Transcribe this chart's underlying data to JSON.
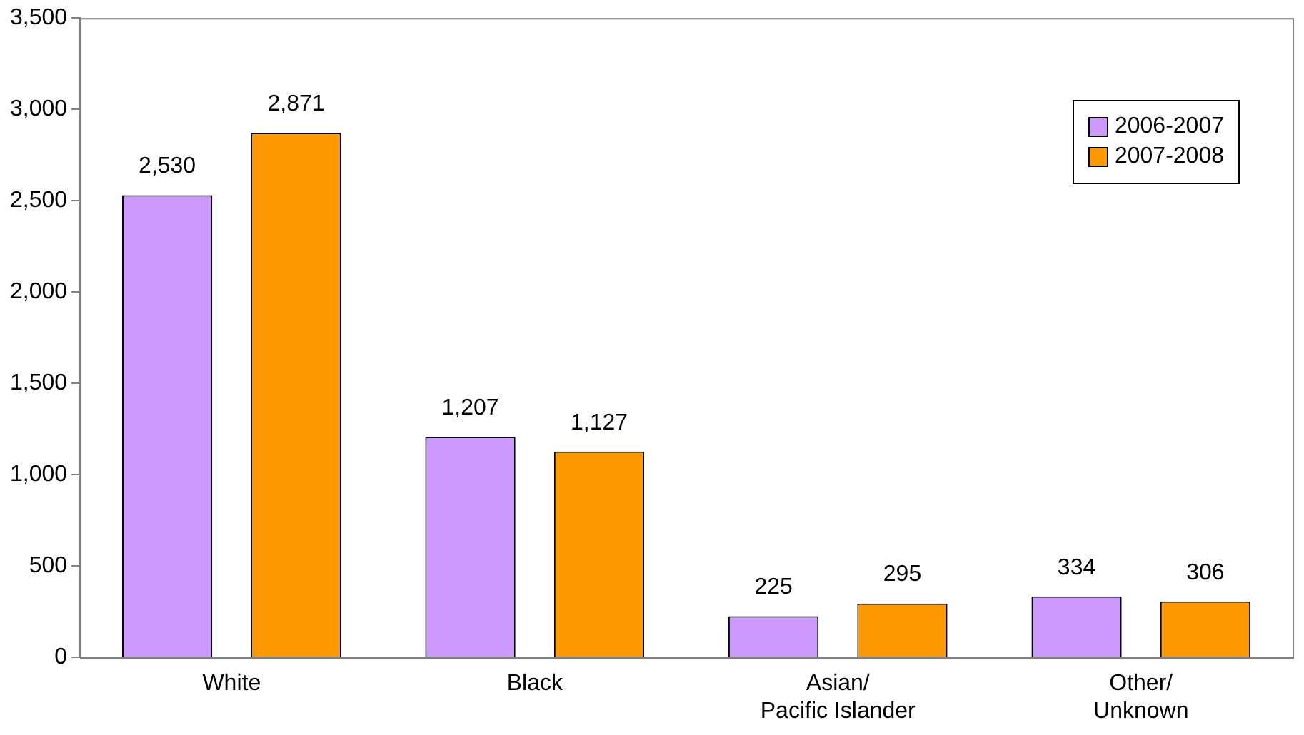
{
  "chart_data": {
    "type": "bar",
    "categories": [
      "White",
      "Black",
      "Asian/Pacific Islander",
      "Other/Unknown"
    ],
    "series": [
      {
        "name": "2006-2007",
        "color": "#cc99ff",
        "values": [
          2530,
          1207,
          225,
          334
        ],
        "value_labels": [
          "2,530",
          "1,207",
          "225",
          "334"
        ]
      },
      {
        "name": "2007-2008",
        "color": "#ff9900",
        "values": [
          2871,
          1127,
          295,
          306
        ],
        "value_labels": [
          "2,871",
          "1,127",
          "295",
          "306"
        ]
      }
    ],
    "ylim": [
      0,
      3500
    ],
    "yticks": [
      0,
      500,
      {
        "value": 1000,
        "label": "1,000"
      },
      {
        "value": 1500,
        "label": "1,500"
      },
      {
        "value": 2000,
        "label": "2,000"
      },
      {
        "value": 2500,
        "label": "2,500"
      },
      {
        "value": 3000,
        "label": "3,000"
      },
      {
        "value": 3500,
        "label": "3,500"
      }
    ],
    "grid": false,
    "legend": "top right"
  }
}
